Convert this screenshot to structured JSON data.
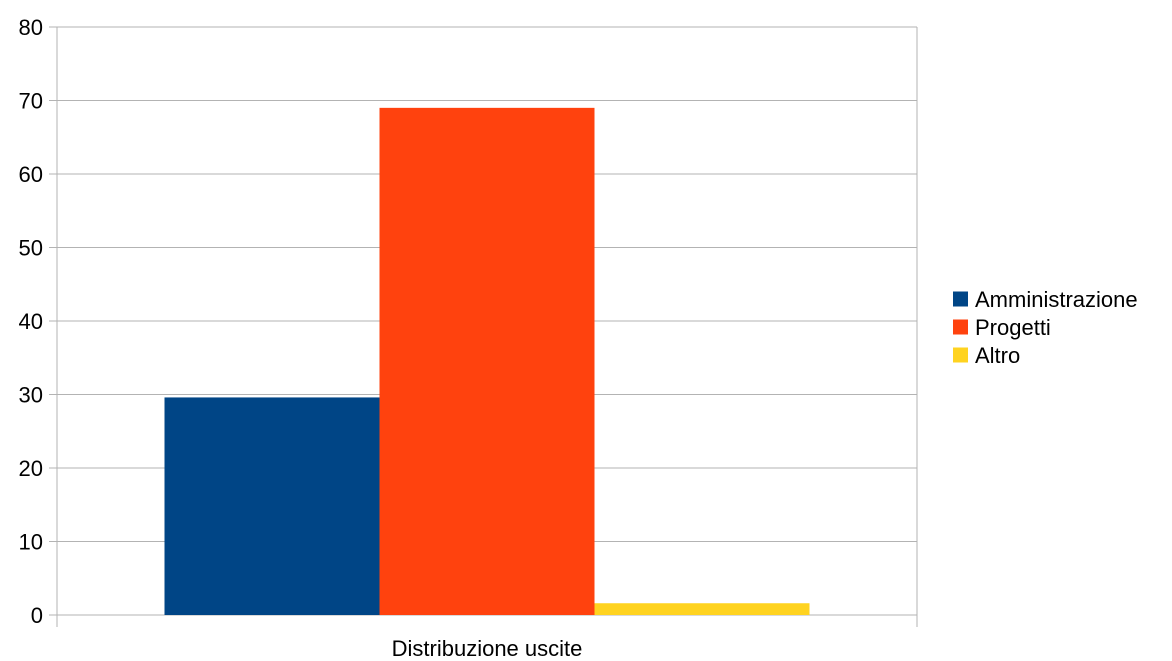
{
  "chart_data": {
    "type": "bar",
    "categories": [
      "Distribuzione uscite"
    ],
    "series": [
      {
        "name": "Amministrazione",
        "values": [
          29.6
        ],
        "color": "#004586"
      },
      {
        "name": "Progetti",
        "values": [
          69.0
        ],
        "color": "#ff420e"
      },
      {
        "name": "Altro",
        "values": [
          1.6
        ],
        "color": "#ffd320"
      }
    ],
    "yticks": [
      "0",
      "10",
      "20",
      "30",
      "40",
      "50",
      "60",
      "70",
      "80"
    ],
    "ylim": [
      0,
      80
    ],
    "grid": true,
    "legend_position": "right",
    "gridline_color": "#b3b3b3",
    "axis_color": "#b3b3b3"
  }
}
